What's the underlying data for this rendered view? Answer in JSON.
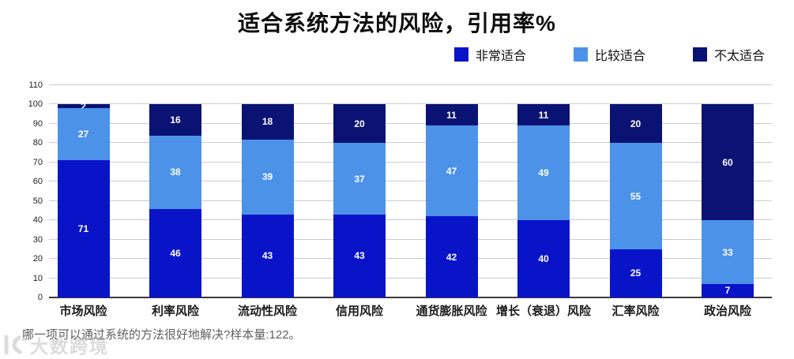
{
  "chart_data": {
    "type": "bar",
    "stacked": true,
    "title": "适合系统方法的风险，引用率%",
    "categories": [
      "市场风险",
      "利率风险",
      "流动性风险",
      "信用风险",
      "通货膨胀风险",
      "增长（衰退）风险",
      "汇率风险",
      "政治风险"
    ],
    "series": [
      {
        "name": "非常适合",
        "color": "#0914C9",
        "values": [
          71,
          46,
          43,
          43,
          42,
          40,
          25,
          7
        ]
      },
      {
        "name": "比较适合",
        "color": "#4C92E8",
        "values": [
          27,
          38,
          39,
          37,
          47,
          49,
          55,
          33
        ]
      },
      {
        "name": "不太适合",
        "color": "#0A1273",
        "values": [
          2,
          16,
          18,
          20,
          11,
          11,
          20,
          60
        ]
      }
    ],
    "ylim": [
      0,
      110
    ],
    "ytick_step": 10,
    "yticks": [
      0,
      10,
      20,
      30,
      40,
      50,
      60,
      70,
      80,
      90,
      100,
      110
    ],
    "grid": true,
    "legend_position": "top-right",
    "value_labels": "white numbers centered inside each segment"
  },
  "footnote": "哪一项可以通过系统的方法很好地解决?样本量:122。",
  "watermark": {
    "text": "大数跨境"
  }
}
